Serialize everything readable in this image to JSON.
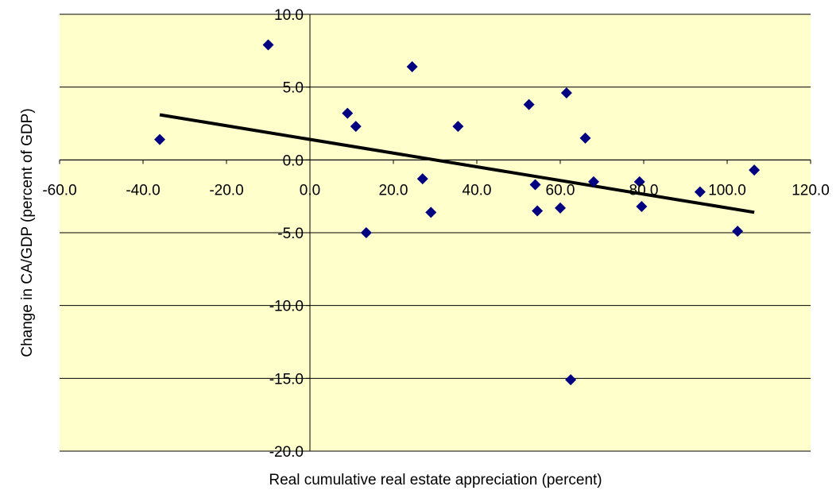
{
  "chart_data": {
    "type": "scatter",
    "title": "",
    "xlabel": "Real cumulative real estate appreciation  (percent)",
    "ylabel": "Change in CA/GDP (percent of GDP)",
    "xlim": [
      -60,
      120
    ],
    "ylim": [
      -20,
      10
    ],
    "x_ticks": [
      "-60.0",
      "-40.0",
      "-20.0",
      "0.0",
      "20.0",
      "40.0",
      "60.0",
      "80.0",
      "100.0",
      "120.0"
    ],
    "y_ticks": [
      "10.0",
      "5.0",
      "0.0",
      "-5.0",
      "-10.0",
      "-15.0",
      "-20.0"
    ],
    "grid": "horizontal",
    "legend": "none",
    "colors": {
      "plot_area": "#FFFFCC",
      "marker": "#000080",
      "trendline": "#000000",
      "gridline": "#000000"
    },
    "series": [
      {
        "marker": "diamond",
        "points": [
          {
            "x": -36.0,
            "y": 1.4
          },
          {
            "x": -10.0,
            "y": 7.9
          },
          {
            "x": 9.0,
            "y": 3.2
          },
          {
            "x": 11.0,
            "y": 2.3
          },
          {
            "x": 13.5,
            "y": -5.0
          },
          {
            "x": 24.5,
            "y": 6.4
          },
          {
            "x": 27.0,
            "y": -1.3
          },
          {
            "x": 29.0,
            "y": -3.6
          },
          {
            "x": 35.5,
            "y": 2.3
          },
          {
            "x": 52.5,
            "y": 3.8
          },
          {
            "x": 54.0,
            "y": -1.7
          },
          {
            "x": 54.5,
            "y": -3.5
          },
          {
            "x": 60.0,
            "y": -3.3
          },
          {
            "x": 61.5,
            "y": 4.6
          },
          {
            "x": 62.5,
            "y": -15.1
          },
          {
            "x": 66.0,
            "y": 1.5
          },
          {
            "x": 68.0,
            "y": -1.5
          },
          {
            "x": 79.0,
            "y": -1.5
          },
          {
            "x": 79.5,
            "y": -3.2
          },
          {
            "x": 93.5,
            "y": -2.2
          },
          {
            "x": 102.5,
            "y": -4.9
          },
          {
            "x": 106.5,
            "y": -0.7
          }
        ]
      }
    ],
    "trendline": {
      "x": [
        -36.0,
        106.5
      ],
      "y": [
        3.1,
        -3.6
      ]
    }
  }
}
